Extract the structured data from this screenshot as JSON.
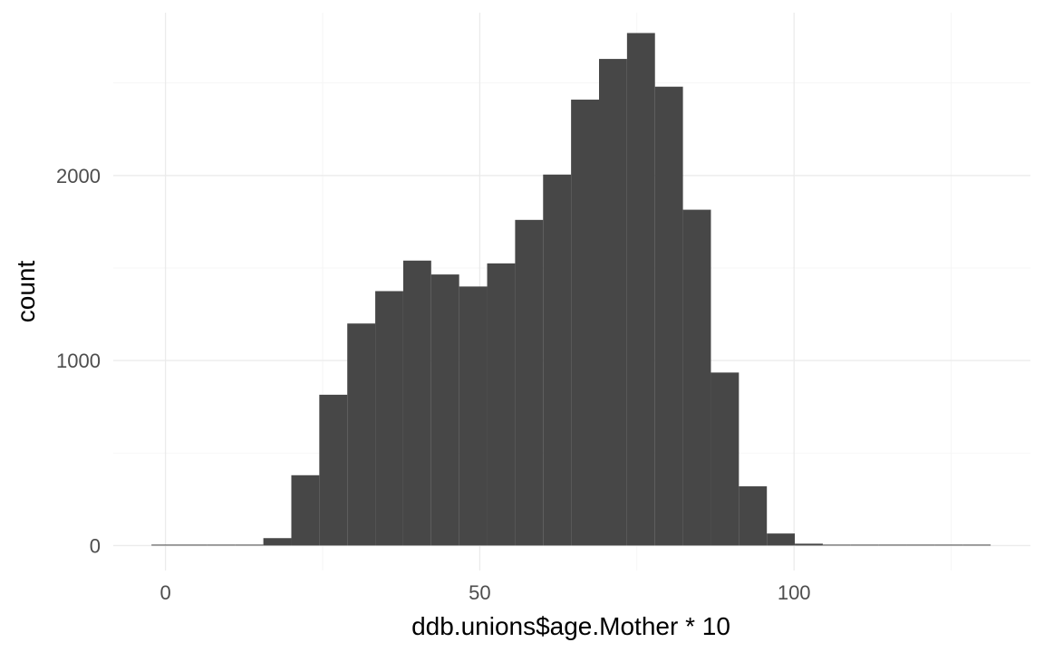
{
  "chart_data": {
    "type": "bar",
    "subtype": "histogram",
    "title": "",
    "xlabel": "ddb.unions$age.Mother * 10",
    "ylabel": "count",
    "xlim": [
      -8.3,
      137.6
    ],
    "ylim": [
      -135,
      2880
    ],
    "x_ticks": [
      0,
      50,
      100
    ],
    "x_tick_labels": [
      "0",
      "50",
      "100"
    ],
    "y_ticks": [
      0,
      1000,
      2000
    ],
    "y_tick_labels": [
      "0",
      "1000",
      "2000"
    ],
    "x_minor_ticks": [
      -25,
      25,
      75,
      125
    ],
    "y_minor_ticks": [
      500,
      1500,
      2500
    ],
    "grid": true,
    "bin_width": 4.45,
    "bins": [
      {
        "x": 0.0,
        "count": 4
      },
      {
        "x": 4.45,
        "count": 0
      },
      {
        "x": 8.9,
        "count": 0
      },
      {
        "x": 13.35,
        "count": 4
      },
      {
        "x": 17.8,
        "count": 40
      },
      {
        "x": 22.25,
        "count": 380
      },
      {
        "x": 26.7,
        "count": 815
      },
      {
        "x": 31.15,
        "count": 1200
      },
      {
        "x": 35.6,
        "count": 1375
      },
      {
        "x": 40.05,
        "count": 1540
      },
      {
        "x": 44.5,
        "count": 1465
      },
      {
        "x": 48.95,
        "count": 1400
      },
      {
        "x": 53.4,
        "count": 1525
      },
      {
        "x": 57.85,
        "count": 1760
      },
      {
        "x": 62.3,
        "count": 2005
      },
      {
        "x": 66.75,
        "count": 2410
      },
      {
        "x": 71.2,
        "count": 2630
      },
      {
        "x": 75.65,
        "count": 2770
      },
      {
        "x": 80.1,
        "count": 2480
      },
      {
        "x": 84.55,
        "count": 1815
      },
      {
        "x": 89.0,
        "count": 935
      },
      {
        "x": 93.45,
        "count": 320
      },
      {
        "x": 97.9,
        "count": 65
      },
      {
        "x": 102.35,
        "count": 10
      },
      {
        "x": 106.8,
        "count": 0
      },
      {
        "x": 111.25,
        "count": 0
      },
      {
        "x": 115.7,
        "count": 0
      },
      {
        "x": 120.15,
        "count": 0
      },
      {
        "x": 124.6,
        "count": 0
      },
      {
        "x": 129.05,
        "count": 3
      }
    ]
  }
}
